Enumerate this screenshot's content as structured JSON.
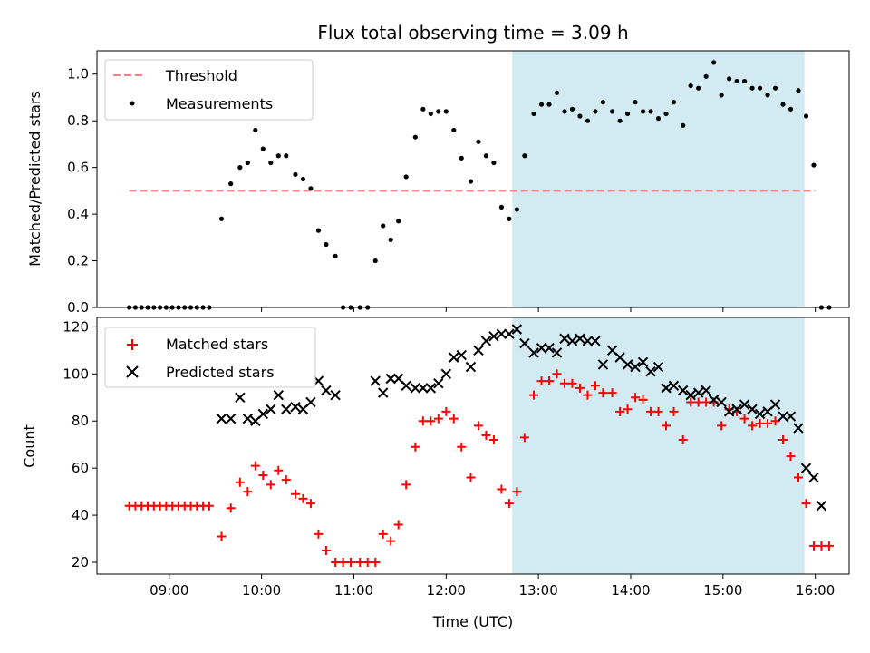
{
  "chart_data": [
    {
      "type": "scatter",
      "title": "Flux total observing time = 3.09 h",
      "xlabel": "",
      "ylabel": "Matched/Predicted stars",
      "xlim": [
        "08:13",
        "16:22"
      ],
      "ylim": [
        0,
        1.1
      ],
      "yticks": [
        "0.0",
        "0.2",
        "0.4",
        "0.6",
        "0.8",
        "1.0"
      ],
      "grid": false,
      "legend": "top-left",
      "highlight_span": [
        "12:43",
        "15:53"
      ],
      "colors": {
        "threshold": "#ff7f7f",
        "measurements": "#000000",
        "span": "#add8e6"
      },
      "threshold": {
        "name": "Threshold",
        "value": 0.5,
        "x_start": "08:34",
        "x_end": "16:00"
      },
      "series": [
        {
          "name": "Measurements",
          "points": [
            [
              "08:34",
              0
            ],
            [
              "08:38",
              0
            ],
            [
              "08:42",
              0
            ],
            [
              "08:46",
              0
            ],
            [
              "08:50",
              0
            ],
            [
              "08:54",
              0
            ],
            [
              "08:58",
              0
            ],
            [
              "09:02",
              0
            ],
            [
              "09:06",
              0
            ],
            [
              "09:10",
              0
            ],
            [
              "09:14",
              0
            ],
            [
              "09:18",
              0
            ],
            [
              "09:22",
              0
            ],
            [
              "09:26",
              0
            ],
            [
              "09:34",
              0.38
            ],
            [
              "09:40",
              0.53
            ],
            [
              "09:46",
              0.6
            ],
            [
              "09:51",
              0.62
            ],
            [
              "09:56",
              0.76
            ],
            [
              "10:01",
              0.68
            ],
            [
              "10:06",
              0.62
            ],
            [
              "10:11",
              0.65
            ],
            [
              "10:16",
              0.65
            ],
            [
              "10:22",
              0.57
            ],
            [
              "10:27",
              0.55
            ],
            [
              "10:32",
              0.51
            ],
            [
              "10:37",
              0.33
            ],
            [
              "10:42",
              0.27
            ],
            [
              "10:48",
              0.22
            ],
            [
              "10:53",
              0
            ],
            [
              "10:58",
              0
            ],
            [
              "11:04",
              0
            ],
            [
              "11:09",
              0
            ],
            [
              "11:14",
              0.2
            ],
            [
              "11:19",
              0.35
            ],
            [
              "11:24",
              0.29
            ],
            [
              "11:29",
              0.37
            ],
            [
              "11:34",
              0.56
            ],
            [
              "11:40",
              0.73
            ],
            [
              "11:45",
              0.85
            ],
            [
              "11:50",
              0.83
            ],
            [
              "11:55",
              0.84
            ],
            [
              "12:00",
              0.84
            ],
            [
              "12:05",
              0.76
            ],
            [
              "12:10",
              0.64
            ],
            [
              "12:16",
              0.54
            ],
            [
              "12:21",
              0.71
            ],
            [
              "12:26",
              0.65
            ],
            [
              "12:31",
              0.62
            ],
            [
              "12:36",
              0.43
            ],
            [
              "12:41",
              0.38
            ],
            [
              "12:46",
              0.42
            ],
            [
              "12:51",
              0.65
            ],
            [
              "12:57",
              0.83
            ],
            [
              "13:02",
              0.87
            ],
            [
              "13:07",
              0.87
            ],
            [
              "13:12",
              0.92
            ],
            [
              "13:17",
              0.84
            ],
            [
              "13:22",
              0.85
            ],
            [
              "13:27",
              0.82
            ],
            [
              "13:32",
              0.8
            ],
            [
              "13:37",
              0.84
            ],
            [
              "13:42",
              0.88
            ],
            [
              "13:48",
              0.84
            ],
            [
              "13:53",
              0.8
            ],
            [
              "13:58",
              0.83
            ],
            [
              "14:03",
              0.88
            ],
            [
              "14:08",
              0.84
            ],
            [
              "14:13",
              0.84
            ],
            [
              "14:18",
              0.81
            ],
            [
              "14:23",
              0.83
            ],
            [
              "14:28",
              0.88
            ],
            [
              "14:34",
              0.78
            ],
            [
              "14:39",
              0.95
            ],
            [
              "14:44",
              0.94
            ],
            [
              "14:49",
              0.99
            ],
            [
              "14:54",
              1.05
            ],
            [
              "14:59",
              0.91
            ],
            [
              "15:04",
              0.98
            ],
            [
              "15:09",
              0.97
            ],
            [
              "15:14",
              0.97
            ],
            [
              "15:19",
              0.94
            ],
            [
              "15:24",
              0.94
            ],
            [
              "15:29",
              0.91
            ],
            [
              "15:34",
              0.94
            ],
            [
              "15:39",
              0.87
            ],
            [
              "15:44",
              0.85
            ],
            [
              "15:49",
              0.93
            ],
            [
              "15:54",
              0.82
            ],
            [
              "15:59",
              0.61
            ],
            [
              "16:04",
              0
            ],
            [
              "16:09",
              0
            ]
          ]
        }
      ]
    },
    {
      "type": "scatter",
      "title": "",
      "xlabel": "Time (UTC)",
      "ylabel": "Count",
      "xlim": [
        "08:13",
        "16:22"
      ],
      "ylim": [
        15,
        124
      ],
      "yticks": [
        "20",
        "40",
        "60",
        "80",
        "100",
        "120"
      ],
      "xticks": [
        "09:00",
        "10:00",
        "11:00",
        "12:00",
        "13:00",
        "14:00",
        "15:00",
        "16:00"
      ],
      "grid": false,
      "legend": "top-left",
      "highlight_span": [
        "12:43",
        "15:53"
      ],
      "colors": {
        "matched": "#ff0000",
        "predicted": "#000000",
        "span": "#add8e6"
      },
      "series": [
        {
          "name": "Matched stars",
          "points": [
            [
              "08:34",
              44
            ],
            [
              "08:38",
              44
            ],
            [
              "08:42",
              44
            ],
            [
              "08:46",
              44
            ],
            [
              "08:50",
              44
            ],
            [
              "08:54",
              44
            ],
            [
              "08:58",
              44
            ],
            [
              "09:02",
              44
            ],
            [
              "09:06",
              44
            ],
            [
              "09:10",
              44
            ],
            [
              "09:14",
              44
            ],
            [
              "09:18",
              44
            ],
            [
              "09:22",
              44
            ],
            [
              "09:26",
              44
            ],
            [
              "09:34",
              31
            ],
            [
              "09:40",
              43
            ],
            [
              "09:46",
              54
            ],
            [
              "09:51",
              50
            ],
            [
              "09:56",
              61
            ],
            [
              "10:01",
              57
            ],
            [
              "10:06",
              53
            ],
            [
              "10:11",
              59
            ],
            [
              "10:16",
              55
            ],
            [
              "10:22",
              49
            ],
            [
              "10:27",
              47
            ],
            [
              "10:32",
              45
            ],
            [
              "10:37",
              32
            ],
            [
              "10:42",
              25
            ],
            [
              "10:48",
              20
            ],
            [
              "10:53",
              20
            ],
            [
              "10:58",
              20
            ],
            [
              "11:04",
              20
            ],
            [
              "11:09",
              20
            ],
            [
              "11:14",
              20
            ],
            [
              "11:19",
              32
            ],
            [
              "11:24",
              29
            ],
            [
              "11:29",
              36
            ],
            [
              "11:34",
              53
            ],
            [
              "11:40",
              69
            ],
            [
              "11:45",
              80
            ],
            [
              "11:50",
              80
            ],
            [
              "11:55",
              81
            ],
            [
              "12:00",
              84
            ],
            [
              "12:05",
              81
            ],
            [
              "12:10",
              69
            ],
            [
              "12:16",
              56
            ],
            [
              "12:21",
              78
            ],
            [
              "12:26",
              74
            ],
            [
              "12:31",
              72
            ],
            [
              "12:36",
              51
            ],
            [
              "12:41",
              45
            ],
            [
              "12:46",
              50
            ],
            [
              "12:51",
              73
            ],
            [
              "12:57",
              91
            ],
            [
              "13:02",
              97
            ],
            [
              "13:07",
              97
            ],
            [
              "13:12",
              100
            ],
            [
              "13:17",
              96
            ],
            [
              "13:22",
              96
            ],
            [
              "13:27",
              94
            ],
            [
              "13:32",
              91
            ],
            [
              "13:37",
              95
            ],
            [
              "13:42",
              92
            ],
            [
              "13:48",
              92
            ],
            [
              "13:53",
              84
            ],
            [
              "13:58",
              85
            ],
            [
              "14:03",
              90
            ],
            [
              "14:08",
              89
            ],
            [
              "14:13",
              84
            ],
            [
              "14:18",
              84
            ],
            [
              "14:23",
              78
            ],
            [
              "14:28",
              84
            ],
            [
              "14:34",
              72
            ],
            [
              "14:39",
              88
            ],
            [
              "14:44",
              88
            ],
            [
              "14:49",
              88
            ],
            [
              "14:54",
              88
            ],
            [
              "14:59",
              78
            ],
            [
              "15:04",
              85
            ],
            [
              "15:09",
              84
            ],
            [
              "15:14",
              81
            ],
            [
              "15:19",
              78
            ],
            [
              "15:24",
              79
            ],
            [
              "15:29",
              79
            ],
            [
              "15:34",
              80
            ],
            [
              "15:39",
              72
            ],
            [
              "15:44",
              65
            ],
            [
              "15:49",
              56
            ],
            [
              "15:54",
              45
            ],
            [
              "15:59",
              27
            ],
            [
              "16:04",
              27
            ],
            [
              "16:09",
              27
            ]
          ]
        },
        {
          "name": "Predicted stars",
          "points": [
            [
              "09:34",
              81
            ],
            [
              "09:40",
              81
            ],
            [
              "09:46",
              90
            ],
            [
              "09:51",
              81
            ],
            [
              "09:56",
              80
            ],
            [
              "10:01",
              83
            ],
            [
              "10:06",
              85
            ],
            [
              "10:11",
              91
            ],
            [
              "10:16",
              85
            ],
            [
              "10:22",
              86
            ],
            [
              "10:27",
              85
            ],
            [
              "10:32",
              88
            ],
            [
              "10:37",
              97
            ],
            [
              "10:42",
              93
            ],
            [
              "10:48",
              91
            ],
            [
              "11:14",
              97
            ],
            [
              "11:19",
              92
            ],
            [
              "11:24",
              98
            ],
            [
              "11:29",
              98
            ],
            [
              "11:34",
              95
            ],
            [
              "11:40",
              94
            ],
            [
              "11:45",
              94
            ],
            [
              "11:50",
              94
            ],
            [
              "11:55",
              96
            ],
            [
              "12:00",
              100
            ],
            [
              "12:05",
              107
            ],
            [
              "12:10",
              108
            ],
            [
              "12:16",
              103
            ],
            [
              "12:21",
              110
            ],
            [
              "12:26",
              114
            ],
            [
              "12:31",
              116
            ],
            [
              "12:36",
              117
            ],
            [
              "12:41",
              117
            ],
            [
              "12:46",
              119
            ],
            [
              "12:51",
              113
            ],
            [
              "12:57",
              109
            ],
            [
              "13:02",
              111
            ],
            [
              "13:07",
              111
            ],
            [
              "13:12",
              109
            ],
            [
              "13:17",
              115
            ],
            [
              "13:22",
              114
            ],
            [
              "13:27",
              115
            ],
            [
              "13:32",
              114
            ],
            [
              "13:37",
              114
            ],
            [
              "13:42",
              104
            ],
            [
              "13:48",
              110
            ],
            [
              "13:53",
              107
            ],
            [
              "13:58",
              104
            ],
            [
              "14:03",
              103
            ],
            [
              "14:08",
              105
            ],
            [
              "14:13",
              101
            ],
            [
              "14:18",
              103
            ],
            [
              "14:23",
              94
            ],
            [
              "14:28",
              95
            ],
            [
              "14:34",
              93
            ],
            [
              "14:39",
              91
            ],
            [
              "14:44",
              92
            ],
            [
              "14:49",
              93
            ],
            [
              "14:54",
              89
            ],
            [
              "14:59",
              88
            ],
            [
              "15:04",
              84
            ],
            [
              "15:09",
              85
            ],
            [
              "15:14",
              87
            ],
            [
              "15:19",
              85
            ],
            [
              "15:24",
              83
            ],
            [
              "15:29",
              84
            ],
            [
              "15:34",
              87
            ],
            [
              "15:39",
              82
            ],
            [
              "15:44",
              82
            ],
            [
              "15:49",
              77
            ],
            [
              "15:54",
              60
            ],
            [
              "15:59",
              56
            ],
            [
              "16:04",
              44
            ]
          ]
        }
      ]
    }
  ]
}
